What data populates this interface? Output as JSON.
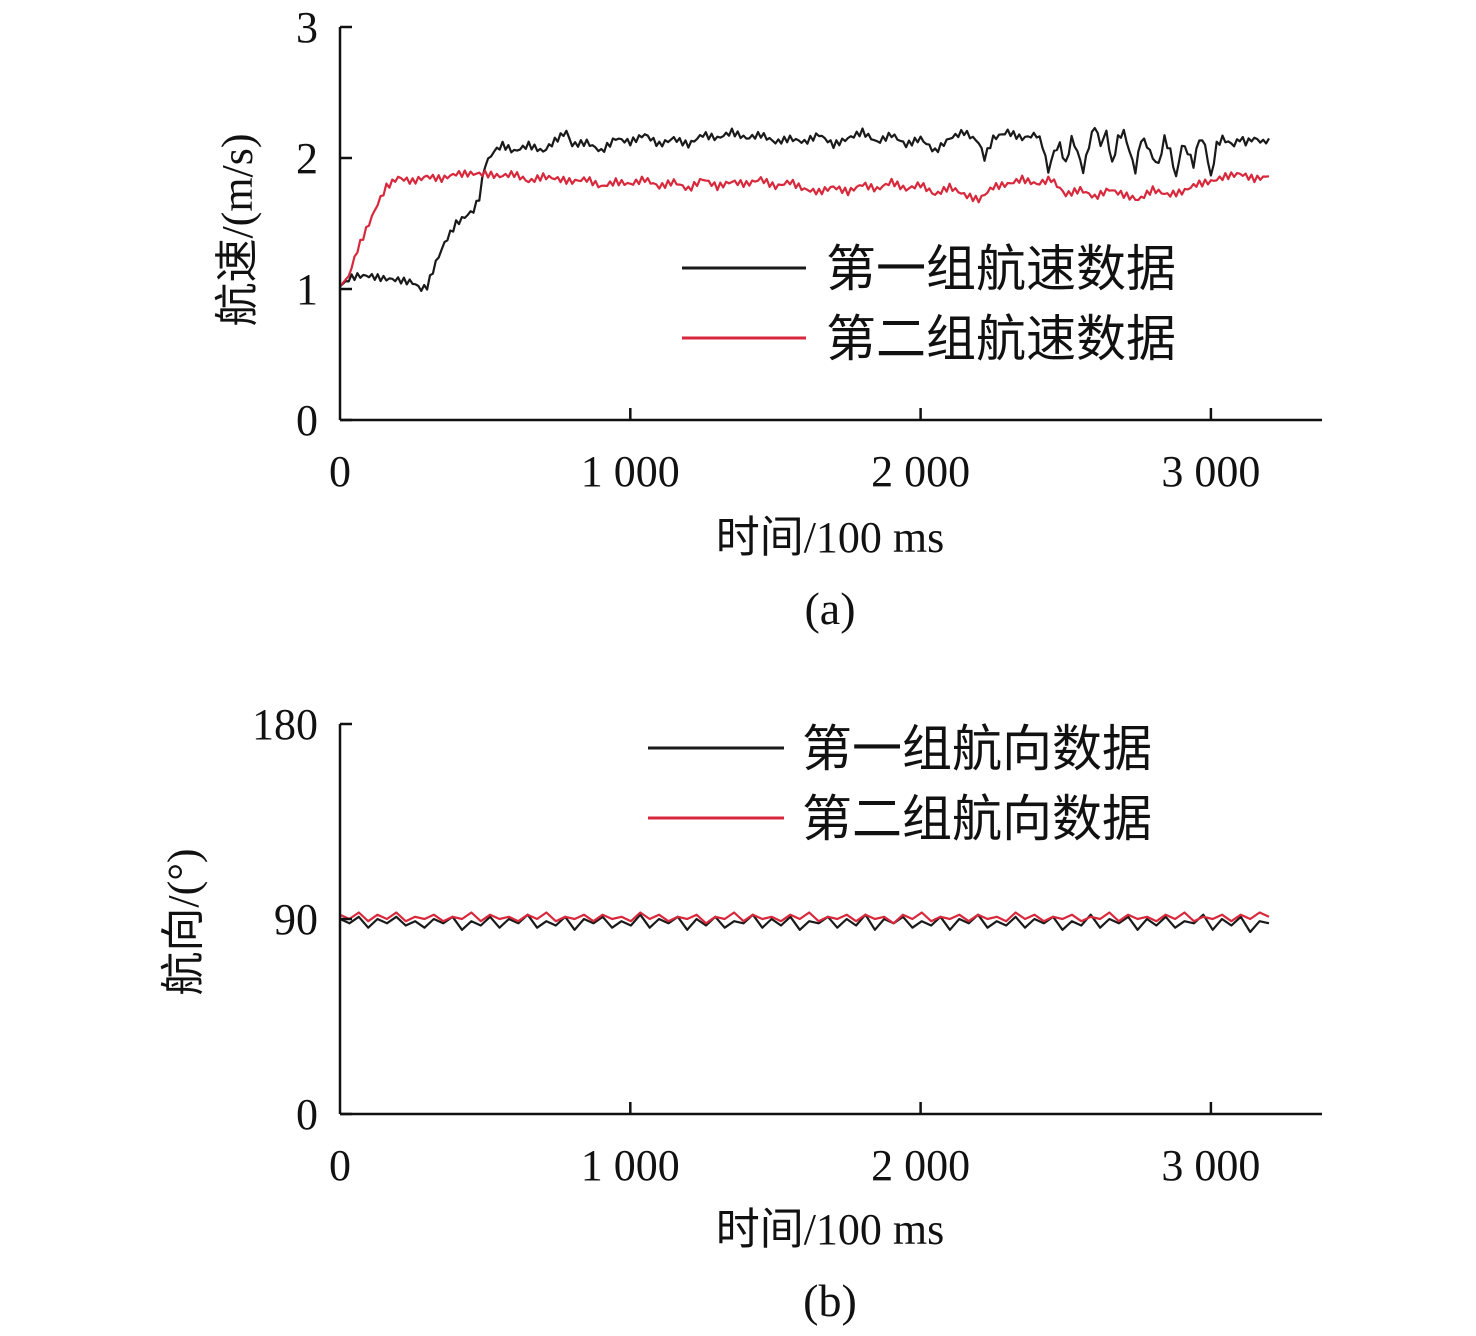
{
  "figure": {
    "panels": [
      {
        "caption": "(a)"
      },
      {
        "caption": "(b)"
      }
    ]
  },
  "colors": {
    "series_1": "#1a1a1a",
    "series_2": "#d8283c",
    "axis": "#111111",
    "background": "#ffffff"
  },
  "chart_data": [
    {
      "type": "line",
      "caption": "(a)",
      "xlabel": "时间/100 ms",
      "ylabel": "航速/(m/s)",
      "xlim": [
        0,
        3400
      ],
      "ylim": [
        0,
        3
      ],
      "xticks": [
        0,
        1000,
        2000,
        3000
      ],
      "xtick_labels": [
        "0",
        "1 000",
        "2 000",
        "3 000"
      ],
      "yticks": [
        0,
        1,
        2,
        3
      ],
      "ytick_labels": [
        "0",
        "1",
        "2",
        "3"
      ],
      "grid": false,
      "legend_position": "center-right",
      "series": [
        {
          "name": "第一组航速数据",
          "color": "#1a1a1a",
          "x": [
            0,
            30,
            60,
            100,
            150,
            200,
            250,
            280,
            300,
            330,
            360,
            400,
            430,
            460,
            480,
            500,
            530,
            560,
            600,
            650,
            700,
            750,
            780,
            800,
            850,
            900,
            950,
            1000,
            1050,
            1100,
            1150,
            1200,
            1250,
            1300,
            1350,
            1400,
            1450,
            1500,
            1550,
            1600,
            1650,
            1700,
            1750,
            1800,
            1850,
            1900,
            1950,
            2000,
            2050,
            2100,
            2150,
            2200,
            2220,
            2250,
            2300,
            2350,
            2400,
            2420,
            2440,
            2460,
            2480,
            2500,
            2520,
            2540,
            2560,
            2580,
            2600,
            2620,
            2640,
            2660,
            2680,
            2700,
            2720,
            2740,
            2760,
            2780,
            2800,
            2820,
            2840,
            2860,
            2880,
            2900,
            2920,
            2940,
            2960,
            2980,
            3000,
            3020,
            3040,
            3060,
            3080,
            3100,
            3120,
            3150,
            3180,
            3200
          ],
          "y": [
            1.02,
            1.08,
            1.1,
            1.1,
            1.08,
            1.07,
            1.05,
            1.0,
            1.02,
            1.2,
            1.35,
            1.5,
            1.55,
            1.6,
            1.7,
            1.95,
            2.05,
            2.1,
            2.05,
            2.1,
            2.05,
            2.15,
            2.2,
            2.1,
            2.12,
            2.05,
            2.15,
            2.12,
            2.18,
            2.1,
            2.15,
            2.1,
            2.18,
            2.15,
            2.2,
            2.15,
            2.18,
            2.12,
            2.15,
            2.12,
            2.18,
            2.1,
            2.15,
            2.2,
            2.12,
            2.18,
            2.1,
            2.15,
            2.05,
            2.15,
            2.2,
            2.12,
            2.0,
            2.15,
            2.2,
            2.15,
            2.18,
            2.1,
            1.9,
            2.05,
            2.1,
            1.95,
            2.15,
            2.05,
            1.9,
            2.1,
            2.25,
            2.1,
            2.2,
            1.95,
            2.15,
            2.2,
            2.05,
            1.9,
            2.15,
            2.1,
            2.0,
            1.95,
            2.15,
            2.05,
            1.85,
            2.1,
            2.05,
            1.95,
            2.15,
            2.1,
            1.85,
            2.1,
            2.15,
            2.12,
            2.1,
            2.15,
            2.12,
            2.15,
            2.12,
            2.15
          ]
        },
        {
          "name": "第二组航速数据",
          "color": "#d8283c",
          "x": [
            0,
            30,
            60,
            100,
            130,
            160,
            200,
            250,
            300,
            350,
            400,
            450,
            500,
            550,
            600,
            650,
            700,
            750,
            800,
            850,
            900,
            950,
            1000,
            1050,
            1100,
            1150,
            1200,
            1250,
            1300,
            1350,
            1400,
            1450,
            1500,
            1550,
            1600,
            1650,
            1700,
            1750,
            1800,
            1850,
            1900,
            1950,
            2000,
            2050,
            2100,
            2150,
            2200,
            2250,
            2300,
            2350,
            2400,
            2450,
            2500,
            2550,
            2600,
            2650,
            2700,
            2750,
            2800,
            2850,
            2900,
            2950,
            3000,
            3050,
            3100,
            3150,
            3200
          ],
          "y": [
            1.02,
            1.1,
            1.3,
            1.5,
            1.65,
            1.78,
            1.85,
            1.82,
            1.86,
            1.84,
            1.88,
            1.88,
            1.88,
            1.86,
            1.88,
            1.82,
            1.86,
            1.84,
            1.82,
            1.84,
            1.78,
            1.82,
            1.8,
            1.84,
            1.78,
            1.82,
            1.76,
            1.84,
            1.78,
            1.82,
            1.8,
            1.84,
            1.78,
            1.82,
            1.76,
            1.74,
            1.78,
            1.74,
            1.8,
            1.76,
            1.82,
            1.76,
            1.8,
            1.72,
            1.78,
            1.72,
            1.68,
            1.78,
            1.8,
            1.84,
            1.8,
            1.84,
            1.72,
            1.76,
            1.7,
            1.76,
            1.72,
            1.68,
            1.76,
            1.72,
            1.74,
            1.8,
            1.82,
            1.86,
            1.88,
            1.84,
            1.86
          ]
        }
      ]
    },
    {
      "type": "line",
      "caption": "(b)",
      "xlabel": "时间/100 ms",
      "ylabel": "航向/(°)",
      "xlim": [
        0,
        3400
      ],
      "ylim": [
        0,
        180
      ],
      "xticks": [
        0,
        1000,
        2000,
        3000
      ],
      "xtick_labels": [
        "0",
        "1 000",
        "2 000",
        "3 000"
      ],
      "yticks": [
        0,
        90,
        180
      ],
      "ytick_labels": [
        "0",
        "90",
        "180"
      ],
      "grid": false,
      "legend_position": "top-right",
      "series": [
        {
          "name": "第一组航向数据",
          "color": "#1a1a1a",
          "x_start": 0,
          "x_end": 3200,
          "baseline": 89,
          "values": [
            90,
            88,
            91,
            86,
            90,
            88,
            91,
            87,
            89,
            86,
            90,
            88,
            91,
            85,
            89,
            87,
            91,
            86,
            90,
            88,
            92,
            86,
            89,
            87,
            91,
            85,
            90,
            88,
            91,
            86,
            89,
            87,
            92,
            86,
            90,
            88,
            91,
            85,
            90,
            87,
            91,
            86,
            89,
            88,
            92,
            86,
            90,
            87,
            91,
            85,
            89,
            88,
            91,
            86,
            90,
            87,
            92,
            85,
            90,
            88,
            91,
            86,
            89,
            87,
            91,
            85,
            90,
            88,
            92,
            86,
            89,
            87,
            91,
            86,
            90,
            88,
            91,
            85,
            89,
            87,
            92,
            86,
            90,
            88,
            91,
            85,
            90,
            87,
            91,
            86,
            89,
            88,
            92,
            85,
            90,
            87,
            91,
            84,
            89,
            88
          ]
        },
        {
          "name": "第二组航向数据",
          "color": "#d8283c",
          "x_start": 0,
          "x_end": 3200,
          "baseline": 91,
          "values": [
            92,
            90,
            93,
            89,
            92,
            90,
            93,
            89,
            91,
            90,
            92,
            89,
            91,
            90,
            93,
            89,
            92,
            90,
            91,
            89,
            92,
            90,
            93,
            89,
            91,
            90,
            92,
            89,
            92,
            90,
            91,
            89,
            93,
            90,
            92,
            89,
            91,
            90,
            92,
            88,
            91,
            90,
            93,
            89,
            92,
            90,
            91,
            89,
            92,
            90,
            93,
            89,
            91,
            90,
            92,
            89,
            92,
            90,
            91,
            88,
            92,
            90,
            93,
            89,
            91,
            90,
            92,
            89,
            92,
            90,
            91,
            89,
            93,
            90,
            92,
            89,
            91,
            90,
            92,
            89,
            91,
            90,
            93,
            89,
            92,
            90,
            91,
            89,
            92,
            90,
            93,
            89,
            91,
            90,
            92,
            89,
            92,
            90,
            93,
            91
          ]
        }
      ]
    }
  ]
}
